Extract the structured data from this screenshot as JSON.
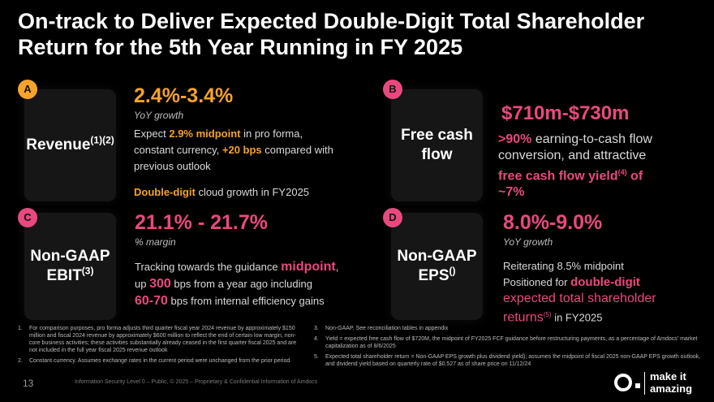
{
  "title": "On-track to Deliver Expected Double-Digit Total Shareholder Return for the 5th Year Running in FY 2025",
  "colors": {
    "accent_orange": "#f5a32a",
    "accent_pink": "#e9497e",
    "background": "#000000"
  },
  "sections": {
    "a": {
      "badge": "A",
      "card_label": "Revenue",
      "card_sup": "(1)(2)",
      "headline": "2.4%-3.4%",
      "subtitle": "YoY growth",
      "line1_pre": "Expect ",
      "line1_hl": "2.9% midpoint",
      "line1_post": " in pro forma,",
      "line2_pre": "constant currency, ",
      "line2_hl": "+20 bps",
      "line2_post": " compared with",
      "line3": "previous outlook",
      "line4_hl": "Double-digit",
      "line4_post": " cloud growth in FY2025"
    },
    "b": {
      "badge": "B",
      "card_label_1": "Free cash",
      "card_label_2": "flow",
      "headline": "$710m-$730m",
      "line1_hl": ">90%",
      "line1_post": " earning-to-cash flow",
      "line2": "conversion, and attractive",
      "line3_hl": "free cash flow yield",
      "line3_sup": "(4)",
      "line3_post": " of",
      "line4": "~7%"
    },
    "c": {
      "badge": "C",
      "card_label_1": "Non-GAAP",
      "card_label_2": "EBIT",
      "card_sup": "(3)",
      "headline": "21.1% - 21.7%",
      "subtitle": "% margin",
      "line1_pre": "Tracking towards the  guidance ",
      "line1_hl": "midpoint",
      "line1_post": ",",
      "line2_pre": "up ",
      "line2_hl": "300",
      "line2_post": " bps from a year ago including",
      "line3_hl": "60-70",
      "line3_post": " bps from internal efficiency gains"
    },
    "d": {
      "badge": "D",
      "card_label_1": "Non-GAAP",
      "card_label_2": "EPS",
      "card_sup": "()",
      "headline": "8.0%-9.0%",
      "subtitle": "YoY growth",
      "line1": "Reiterating 8.5% midpoint",
      "line2_pre": "Positioned for ",
      "line2_hl": "double-digit",
      "line3": "expected total shareholder",
      "line4_pre": "returns",
      "line4_sup": "(5)",
      "line4_post": " in FY2025"
    }
  },
  "footnotes_left": [
    {
      "num": "1.",
      "text": "For comparison purposes, pro forma adjusts third quarter fiscal year 2024 revenue by approximately $150 million and fiscal 2024 revenue by approximately $600 million to reflect the end of certain low margin, non-core business activities; these activities substantially already ceased in the first quarter fiscal 2025 and are not included in the full year fiscal 2025 revenue outlook"
    },
    {
      "num": "2.",
      "text": "Constant currency. Assumes exchange rates in the current period were unchanged from the prior period"
    }
  ],
  "footnotes_right": [
    {
      "num": "3.",
      "text": "Non-GAAP. See reconciliation tables in appendix"
    },
    {
      "num": "4.",
      "text": "Yield = expected free cash flow of $720M, the midpoint of FY2025 FCF guidance before restructuring payments, as a percentage of Amdocs' market capitalization as of 8/6/2025"
    },
    {
      "num": "5.",
      "text": "Expected total shareholder return = Non-GAAP EPS growth plus dividend yield); assumes the midpoint of fiscal 2025 non-GAAP EPS growth outlook, and dividend yield based on quarterly rate of $0.527 as of share price on 11/12/24"
    }
  ],
  "page_number": "13",
  "classification": "Information Security Level 0 – Public, © 2025 – Proprietary & Confidential Information of Amdocs",
  "logo": {
    "line1": "make it",
    "line2": "amazing"
  }
}
